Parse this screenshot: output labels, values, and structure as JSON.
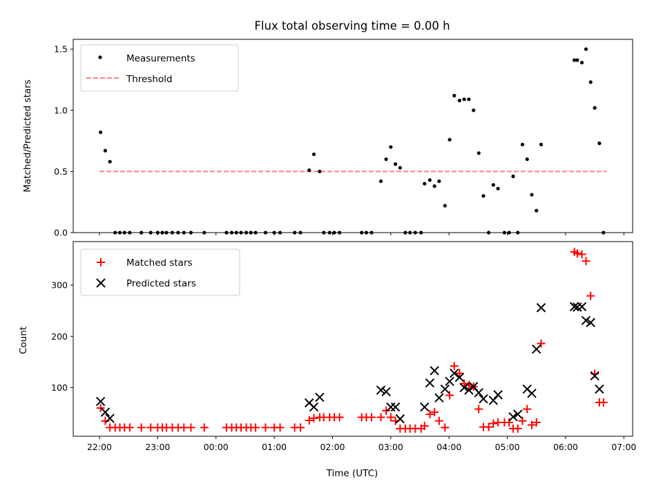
{
  "title": "Flux total observing time = 0.00 h",
  "x_label": "Time (UTC)",
  "chart_data": [
    {
      "type": "scatter",
      "ylabel": "Matched/Predicted stars",
      "ylim": [
        0,
        1.58
      ],
      "yticks": [
        0.0,
        0.5,
        1.0,
        1.5
      ],
      "ytick_labels": [
        "0.0",
        "0.5",
        "1.0",
        "1.5"
      ],
      "legend_placement": "upper-left",
      "legend": [
        "Measurements",
        "Threshold"
      ],
      "threshold": {
        "name": "Threshold",
        "y": 0.5,
        "x_range": [
          0.0,
          8.7
        ],
        "color": "#ff7f7f"
      },
      "series": [
        {
          "name": "Measurements",
          "marker": "dot",
          "color": "#000000",
          "points": [
            [
              0.02,
              0.82
            ],
            [
              0.1,
              0.67
            ],
            [
              0.18,
              0.58
            ],
            [
              0.27,
              0.0
            ],
            [
              0.35,
              0.0
            ],
            [
              0.43,
              0.0
            ],
            [
              0.52,
              0.0
            ],
            [
              0.72,
              0.0
            ],
            [
              0.88,
              0.0
            ],
            [
              1.0,
              0.0
            ],
            [
              1.08,
              0.0
            ],
            [
              1.15,
              0.0
            ],
            [
              1.25,
              0.0
            ],
            [
              1.35,
              0.0
            ],
            [
              1.45,
              0.0
            ],
            [
              1.57,
              0.0
            ],
            [
              1.8,
              0.0
            ],
            [
              2.18,
              0.0
            ],
            [
              2.27,
              0.0
            ],
            [
              2.35,
              0.0
            ],
            [
              2.43,
              0.0
            ],
            [
              2.52,
              0.0
            ],
            [
              2.6,
              0.0
            ],
            [
              2.68,
              0.0
            ],
            [
              2.85,
              0.0
            ],
            [
              3.0,
              0.0
            ],
            [
              3.1,
              0.0
            ],
            [
              3.35,
              0.0
            ],
            [
              3.45,
              0.0
            ],
            [
              3.6,
              0.51
            ],
            [
              3.68,
              0.64
            ],
            [
              3.78,
              0.5
            ],
            [
              3.85,
              0.0
            ],
            [
              3.95,
              0.0
            ],
            [
              4.03,
              0.0
            ],
            [
              4.12,
              0.0
            ],
            [
              4.5,
              0.0
            ],
            [
              4.58,
              0.0
            ],
            [
              4.67,
              0.0
            ],
            [
              4.83,
              0.42
            ],
            [
              4.92,
              0.6
            ],
            [
              5.0,
              0.7
            ],
            [
              5.08,
              0.56
            ],
            [
              5.16,
              0.53
            ],
            [
              5.25,
              0.0
            ],
            [
              5.33,
              0.0
            ],
            [
              5.42,
              0.0
            ],
            [
              5.52,
              0.0
            ],
            [
              5.58,
              0.4
            ],
            [
              5.67,
              0.43
            ],
            [
              5.75,
              0.38
            ],
            [
              5.83,
              0.42
            ],
            [
              5.93,
              0.22
            ],
            [
              6.01,
              0.76
            ],
            [
              6.09,
              1.12
            ],
            [
              6.18,
              1.08
            ],
            [
              6.26,
              1.09
            ],
            [
              6.34,
              1.09
            ],
            [
              6.42,
              1.0
            ],
            [
              6.51,
              0.65
            ],
            [
              6.59,
              0.3
            ],
            [
              6.68,
              0.0
            ],
            [
              6.76,
              0.39
            ],
            [
              6.84,
              0.36
            ],
            [
              6.95,
              0.0
            ],
            [
              7.03,
              0.0
            ],
            [
              7.1,
              0.46
            ],
            [
              7.18,
              0.0
            ],
            [
              7.26,
              0.72
            ],
            [
              7.34,
              0.6
            ],
            [
              7.42,
              0.31
            ],
            [
              7.5,
              0.18
            ],
            [
              7.58,
              0.72
            ],
            [
              8.15,
              1.41
            ],
            [
              8.2,
              1.41
            ],
            [
              8.28,
              1.39
            ],
            [
              8.35,
              1.5
            ],
            [
              8.43,
              1.23
            ],
            [
              8.5,
              1.02
            ],
            [
              8.58,
              0.73
            ],
            [
              8.65,
              0.0
            ]
          ]
        }
      ]
    },
    {
      "type": "scatter",
      "ylabel": "Count",
      "ylim": [
        5,
        385
      ],
      "yticks": [
        100,
        200,
        300
      ],
      "ytick_labels": [
        "100",
        "200",
        "300"
      ],
      "legend_placement": "upper-left",
      "legend": [
        "Matched stars",
        "Predicted stars"
      ],
      "xlim": [
        -0.45,
        9.15
      ],
      "xticks": [
        0,
        1,
        2,
        3,
        4,
        5,
        6,
        7,
        8,
        9
      ],
      "xtick_labels": [
        "22:00",
        "23:00",
        "00:00",
        "01:00",
        "02:00",
        "03:00",
        "04:00",
        "05:00",
        "06:00",
        "07:00"
      ],
      "series": [
        {
          "name": "Matched stars",
          "marker": "plus",
          "color": "#ff0000",
          "points": [
            [
              0.02,
              60
            ],
            [
              0.1,
              35
            ],
            [
              0.18,
              22
            ],
            [
              0.27,
              22
            ],
            [
              0.35,
              22
            ],
            [
              0.43,
              22
            ],
            [
              0.52,
              22
            ],
            [
              0.72,
              22
            ],
            [
              0.88,
              22
            ],
            [
              1.0,
              22
            ],
            [
              1.08,
              22
            ],
            [
              1.15,
              22
            ],
            [
              1.25,
              22
            ],
            [
              1.35,
              22
            ],
            [
              1.45,
              22
            ],
            [
              1.57,
              22
            ],
            [
              1.8,
              22
            ],
            [
              2.18,
              22
            ],
            [
              2.27,
              22
            ],
            [
              2.35,
              22
            ],
            [
              2.43,
              22
            ],
            [
              2.52,
              22
            ],
            [
              2.6,
              22
            ],
            [
              2.68,
              22
            ],
            [
              2.85,
              22
            ],
            [
              3.0,
              22
            ],
            [
              3.1,
              22
            ],
            [
              3.35,
              22
            ],
            [
              3.45,
              22
            ],
            [
              3.6,
              36
            ],
            [
              3.68,
              40
            ],
            [
              3.78,
              42
            ],
            [
              3.85,
              42
            ],
            [
              3.95,
              42
            ],
            [
              4.03,
              42
            ],
            [
              4.12,
              42
            ],
            [
              4.5,
              42
            ],
            [
              4.58,
              42
            ],
            [
              4.67,
              42
            ],
            [
              4.83,
              42
            ],
            [
              4.92,
              55
            ],
            [
              5.0,
              42
            ],
            [
              5.08,
              35
            ],
            [
              5.16,
              20
            ],
            [
              5.25,
              20
            ],
            [
              5.33,
              20
            ],
            [
              5.42,
              20
            ],
            [
              5.52,
              20
            ],
            [
              5.58,
              25
            ],
            [
              5.67,
              48
            ],
            [
              5.75,
              52
            ],
            [
              5.83,
              35
            ],
            [
              5.93,
              22
            ],
            [
              6.01,
              85
            ],
            [
              6.09,
              142
            ],
            [
              6.18,
              128
            ],
            [
              6.26,
              108
            ],
            [
              6.34,
              105
            ],
            [
              6.42,
              102
            ],
            [
              6.51,
              58
            ],
            [
              6.59,
              23
            ],
            [
              6.68,
              23
            ],
            [
              6.76,
              30
            ],
            [
              6.84,
              32
            ],
            [
              6.95,
              32
            ],
            [
              7.03,
              32
            ],
            [
              7.1,
              20
            ],
            [
              7.18,
              20
            ],
            [
              7.26,
              35
            ],
            [
              7.34,
              58
            ],
            [
              7.42,
              27
            ],
            [
              7.5,
              32
            ],
            [
              7.58,
              186
            ],
            [
              8.15,
              365
            ],
            [
              8.2,
              362
            ],
            [
              8.28,
              360
            ],
            [
              8.35,
              347
            ],
            [
              8.43,
              279
            ],
            [
              8.5,
              127
            ],
            [
              8.58,
              71
            ],
            [
              8.65,
              71
            ]
          ]
        },
        {
          "name": "Predicted stars",
          "marker": "cross",
          "color": "#000000",
          "points": [
            [
              0.02,
              73
            ],
            [
              0.1,
              52
            ],
            [
              0.18,
              40
            ],
            [
              3.6,
              70
            ],
            [
              3.68,
              62
            ],
            [
              3.78,
              81
            ],
            [
              4.83,
              95
            ],
            [
              4.92,
              92
            ],
            [
              5.0,
              62
            ],
            [
              5.08,
              62
            ],
            [
              5.16,
              39
            ],
            [
              5.58,
              62
            ],
            [
              5.67,
              109
            ],
            [
              5.75,
              133
            ],
            [
              5.83,
              80
            ],
            [
              5.93,
              97
            ],
            [
              6.01,
              112
            ],
            [
              6.09,
              128
            ],
            [
              6.18,
              120
            ],
            [
              6.26,
              100
            ],
            [
              6.34,
              95
            ],
            [
              6.42,
              102
            ],
            [
              6.51,
              90
            ],
            [
              6.59,
              78
            ],
            [
              6.76,
              75
            ],
            [
              6.84,
              86
            ],
            [
              7.1,
              43
            ],
            [
              7.18,
              48
            ],
            [
              7.34,
              97
            ],
            [
              7.42,
              89
            ],
            [
              7.5,
              175
            ],
            [
              7.58,
              256
            ],
            [
              8.15,
              258
            ],
            [
              8.2,
              257
            ],
            [
              8.28,
              258
            ],
            [
              8.35,
              231
            ],
            [
              8.43,
              227
            ],
            [
              8.5,
              123
            ],
            [
              8.58,
              97
            ]
          ]
        }
      ]
    }
  ]
}
